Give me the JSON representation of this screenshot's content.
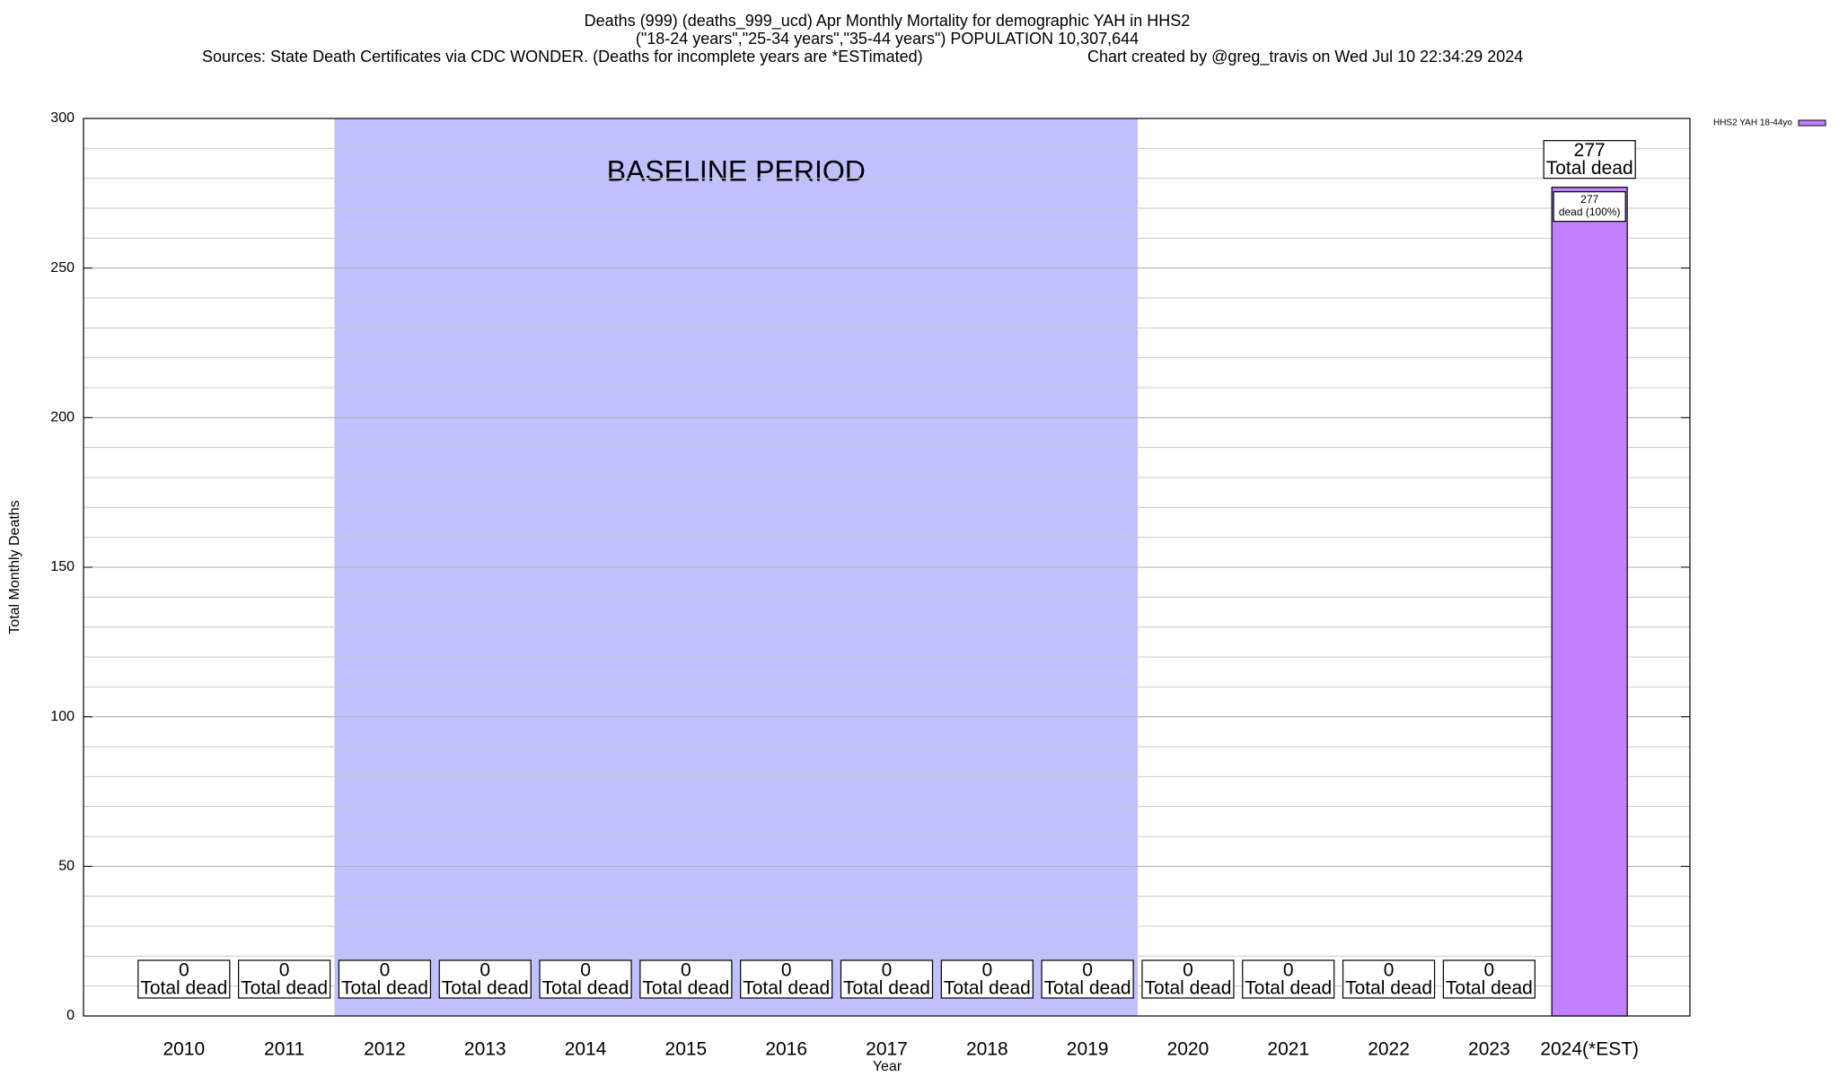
{
  "chart_data": {
    "type": "bar",
    "title": "Deaths (999) (deaths_999_ucd) Apr Monthly Mortality for demographic YAH in HHS2",
    "subtitle": "(\"18-24 years\",\"25-34 years\",\"35-44 years\") POPULATION 10,307,644",
    "source": "Sources: State Death Certificates via CDC WONDER. (Deaths for incomplete years are *ESTimated)",
    "credit": "Chart created by @greg_travis on Wed Jul 10 22:34:29 2024",
    "x_label": "Year",
    "y_label": "Total Monthly Deaths",
    "categories": [
      "2010",
      "2011",
      "2012",
      "2013",
      "2014",
      "2015",
      "2016",
      "2017",
      "2018",
      "2019",
      "2020",
      "2021",
      "2022",
      "2023",
      "2024(*EST)"
    ],
    "series": [
      {
        "name": "HHS2 YAH 18-44yo",
        "color": "#c080ff",
        "values": [
          0,
          0,
          0,
          0,
          0,
          0,
          0,
          0,
          0,
          0,
          0,
          0,
          0,
          0,
          277
        ]
      }
    ],
    "total_label": "Total dead",
    "inner_labels": [
      null,
      null,
      null,
      null,
      null,
      null,
      null,
      null,
      null,
      null,
      null,
      null,
      null,
      null,
      "dead (100%)"
    ],
    "baseline": {
      "label": "BASELINE PERIOD",
      "start": "2012",
      "end": "2019",
      "color": "#c0c0ff"
    },
    "ylim": [
      0,
      300
    ],
    "yticks": [
      0,
      50,
      100,
      150,
      200,
      250,
      300
    ],
    "minor_grid_step": 10,
    "grid": true,
    "legend": "top-right"
  }
}
